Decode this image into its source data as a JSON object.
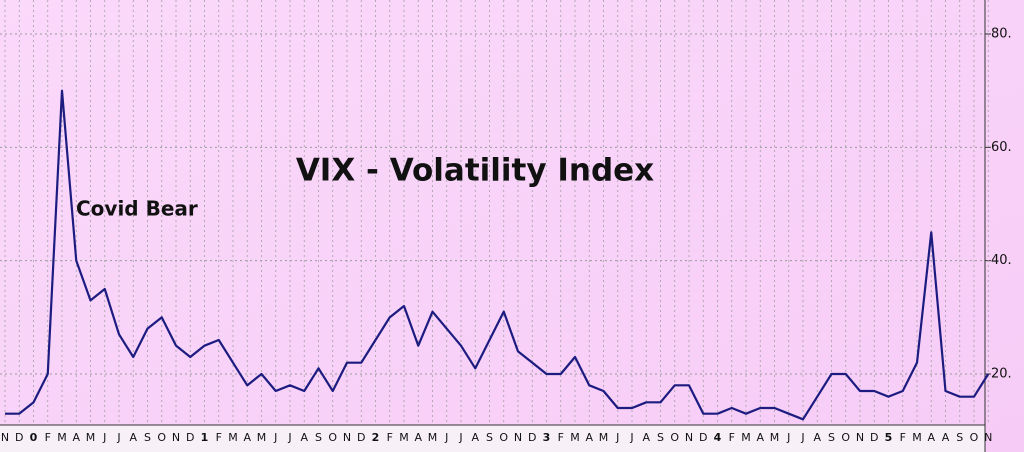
{
  "chart_data": {
    "type": "line",
    "title": "VIX - Volatility Index",
    "annotation": "Covid Bear",
    "categories": [
      "N",
      "D",
      "0",
      "F",
      "M",
      "A",
      "M",
      "J",
      "J",
      "A",
      "S",
      "O",
      "N",
      "D",
      "1",
      "F",
      "M",
      "A",
      "M",
      "J",
      "J",
      "A",
      "S",
      "O",
      "N",
      "D",
      "2",
      "F",
      "M",
      "A",
      "M",
      "J",
      "J",
      "A",
      "S",
      "O",
      "N",
      "D",
      "3",
      "F",
      "M",
      "A",
      "M",
      "J",
      "J",
      "A",
      "S",
      "O",
      "N",
      "D",
      "4",
      "F",
      "M",
      "A",
      "M",
      "J",
      "J",
      "A",
      "S",
      "O",
      "N",
      "D",
      "5",
      "F",
      "M",
      "A",
      "A",
      "S",
      "O",
      "N"
    ],
    "series": [
      {
        "name": "VIX",
        "color": "#1c1c80",
        "values": [
          13,
          13,
          15,
          20,
          70,
          40,
          33,
          35,
          27,
          23,
          28,
          30,
          25,
          23,
          25,
          26,
          22,
          18,
          20,
          17,
          18,
          17,
          21,
          17,
          22,
          22,
          26,
          30,
          32,
          25,
          31,
          28,
          25,
          21,
          26,
          31,
          24,
          22,
          20,
          20,
          23,
          18,
          17,
          14,
          14,
          15,
          15,
          18,
          18,
          13,
          13,
          14,
          13,
          14,
          14,
          13,
          12,
          16,
          20,
          20,
          17,
          17,
          16,
          17,
          22,
          45,
          17,
          16,
          16,
          20
        ]
      }
    ],
    "ylim": [
      11,
      86
    ],
    "yticks": [
      {
        "value": 20,
        "label": "20."
      },
      {
        "value": 40,
        "label": "40."
      },
      {
        "value": 60,
        "label": "60."
      },
      {
        "value": 80,
        "label": "80."
      }
    ],
    "grid": true
  }
}
